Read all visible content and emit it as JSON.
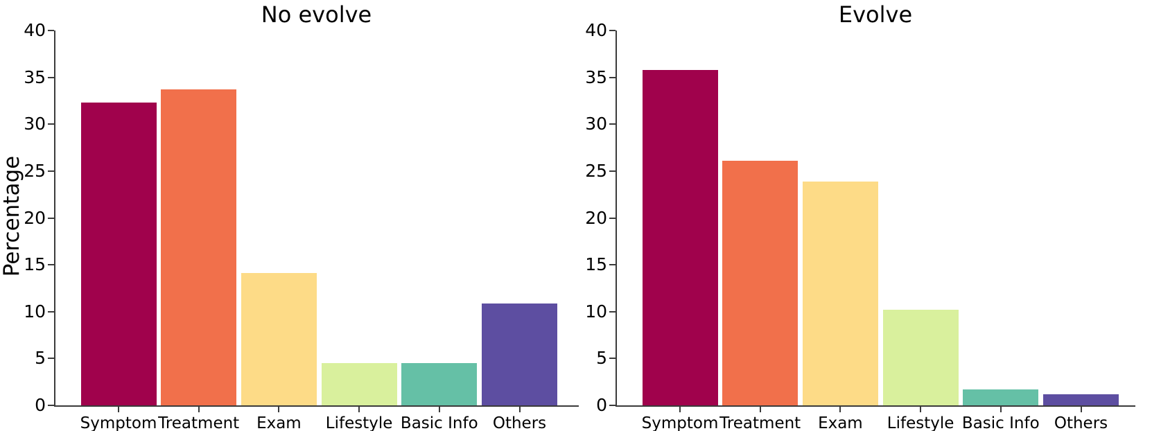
{
  "figure": {
    "background": "#ffffff",
    "axis_color": "#3a3a3a",
    "text_color": "#000000",
    "ylabel": "Percentage"
  },
  "chart_data": [
    {
      "type": "bar",
      "title": "No evolve",
      "xlabel": "",
      "ylabel": "Percentage",
      "categories": [
        "Symptom",
        "Treatment",
        "Exam",
        "Lifestyle",
        "Basic Info",
        "Others"
      ],
      "values": [
        32.3,
        33.7,
        14.1,
        4.5,
        4.5,
        10.9
      ],
      "ylim": [
        0,
        40
      ],
      "yticks": [
        0,
        5,
        10,
        15,
        20,
        25,
        30,
        35,
        40
      ],
      "bar_colors": [
        "#a0024c",
        "#f1704b",
        "#fddb87",
        "#d9f09d",
        "#65c0a6",
        "#5d4ea1"
      ],
      "grid": false,
      "legend": null
    },
    {
      "type": "bar",
      "title": "Evolve",
      "xlabel": "",
      "ylabel": "",
      "categories": [
        "Symptom",
        "Treatment",
        "Exam",
        "Lifestyle",
        "Basic Info",
        "Others"
      ],
      "values": [
        35.8,
        26.1,
        23.9,
        10.2,
        1.7,
        1.2
      ],
      "ylim": [
        0,
        40
      ],
      "yticks": [
        0,
        5,
        10,
        15,
        20,
        25,
        30,
        35,
        40
      ],
      "bar_colors": [
        "#a0024c",
        "#f1704b",
        "#fddb87",
        "#d9f09d",
        "#65c0a6",
        "#5d4ea1"
      ],
      "grid": false,
      "legend": null
    }
  ]
}
